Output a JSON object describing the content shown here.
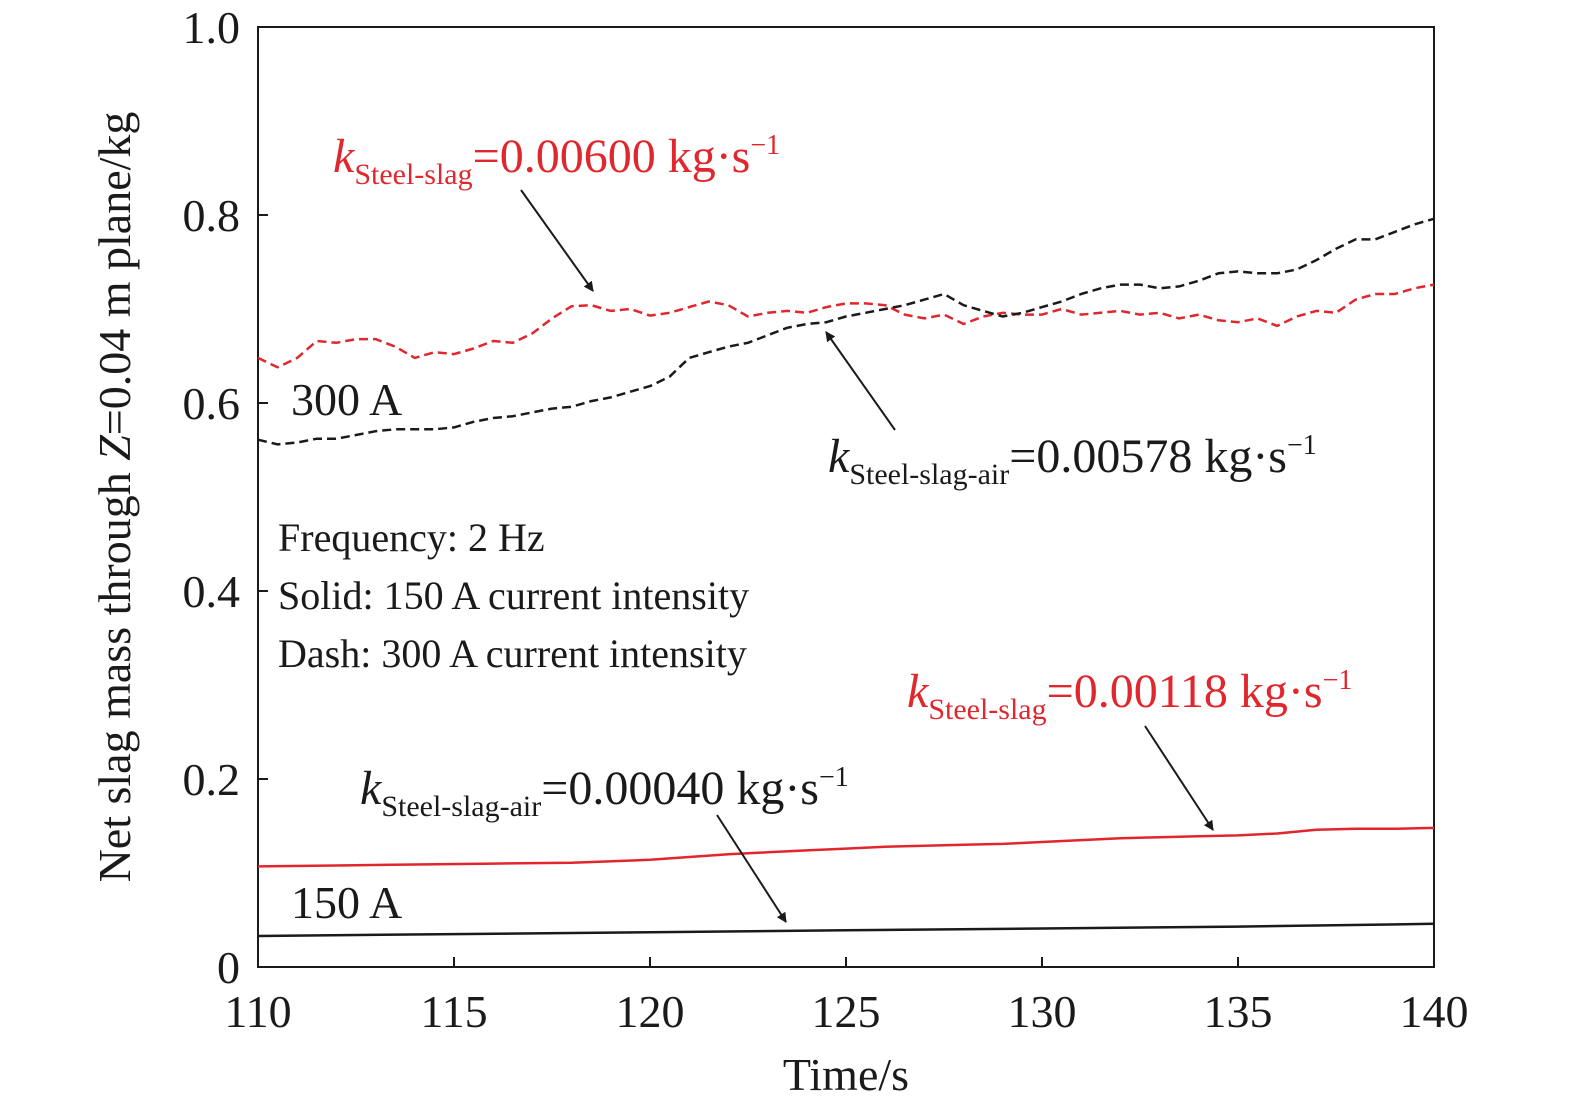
{
  "chart_data": {
    "type": "line",
    "xlabel": "Time/s",
    "ylabel_parts": [
      {
        "t": "Net slag mass through ",
        "italic": false
      },
      {
        "t": "Z",
        "italic": true
      },
      {
        "t": "=0.04 m plane/kg",
        "italic": false
      }
    ],
    "xlim": [
      110,
      140
    ],
    "ylim": [
      0,
      1.0
    ],
    "xticks": [
      110,
      115,
      120,
      125,
      130,
      135,
      140
    ],
    "xtick_labels": [
      "110",
      "115",
      "120",
      "125",
      "130",
      "135",
      "140"
    ],
    "yticks": [
      0,
      0.2,
      0.4,
      0.6,
      0.8,
      1.0
    ],
    "ytick_labels": [
      "0",
      "0.2",
      "0.4",
      "0.6",
      "0.8",
      "1.0"
    ],
    "grid": false,
    "colors": {
      "black": "#1a1a1a",
      "red": "#e0272e"
    },
    "series": [
      {
        "key": "dash-red",
        "color": "red",
        "dash": true,
        "x": [
          110,
          110.5,
          111,
          111.5,
          112,
          112.5,
          113,
          113.5,
          114,
          114.5,
          115,
          115.5,
          116,
          116.5,
          117,
          117.5,
          118,
          118.5,
          119,
          119.5,
          120,
          120.5,
          121,
          121.5,
          122,
          122.5,
          123,
          123.5,
          124,
          124.5,
          125,
          125.5,
          126,
          126.5,
          127,
          127.5,
          128,
          128.5,
          129,
          129.5,
          130,
          130.5,
          131,
          131.5,
          132,
          132.5,
          133,
          133.5,
          134,
          134.5,
          135,
          135.5,
          136,
          136.5,
          137,
          137.5,
          138,
          138.5,
          139,
          139.5,
          140
        ],
        "y": [
          0.648,
          0.638,
          0.648,
          0.666,
          0.664,
          0.668,
          0.668,
          0.66,
          0.648,
          0.654,
          0.652,
          0.658,
          0.666,
          0.664,
          0.674,
          0.69,
          0.703,
          0.704,
          0.698,
          0.7,
          0.693,
          0.696,
          0.702,
          0.708,
          0.704,
          0.692,
          0.696,
          0.698,
          0.696,
          0.702,
          0.706,
          0.706,
          0.704,
          0.694,
          0.69,
          0.694,
          0.684,
          0.692,
          0.696,
          0.694,
          0.694,
          0.7,
          0.694,
          0.696,
          0.698,
          0.694,
          0.696,
          0.69,
          0.694,
          0.688,
          0.686,
          0.69,
          0.682,
          0.692,
          0.698,
          0.696,
          0.71,
          0.716,
          0.716,
          0.722,
          0.726
        ]
      },
      {
        "key": "dash-black",
        "color": "black",
        "dash": true,
        "x": [
          110,
          110.5,
          111,
          111.5,
          112,
          112.5,
          113,
          113.5,
          114,
          114.5,
          115,
          115.5,
          116,
          116.5,
          117,
          117.5,
          118,
          118.5,
          119,
          119.5,
          120,
          120.5,
          121,
          121.5,
          122,
          122.5,
          123,
          123.5,
          124,
          124.5,
          125,
          125.5,
          126,
          126.5,
          127,
          127.5,
          128,
          128.5,
          129,
          129.5,
          130,
          130.5,
          131,
          131.5,
          132,
          132.5,
          133,
          133.5,
          134,
          134.5,
          135,
          135.5,
          136,
          136.5,
          137,
          137.5,
          138,
          138.5,
          139,
          139.5,
          140
        ],
        "y": [
          0.561,
          0.556,
          0.558,
          0.562,
          0.562,
          0.566,
          0.57,
          0.572,
          0.572,
          0.572,
          0.574,
          0.58,
          0.584,
          0.586,
          0.59,
          0.594,
          0.596,
          0.602,
          0.606,
          0.612,
          0.618,
          0.628,
          0.648,
          0.654,
          0.66,
          0.664,
          0.672,
          0.68,
          0.684,
          0.686,
          0.692,
          0.696,
          0.7,
          0.704,
          0.71,
          0.716,
          0.704,
          0.698,
          0.692,
          0.696,
          0.702,
          0.708,
          0.716,
          0.722,
          0.726,
          0.726,
          0.722,
          0.724,
          0.73,
          0.738,
          0.74,
          0.738,
          0.738,
          0.742,
          0.752,
          0.764,
          0.774,
          0.774,
          0.782,
          0.79,
          0.796
        ]
      },
      {
        "key": "solid-red",
        "color": "red",
        "dash": false,
        "x": [
          110,
          112,
          114,
          116,
          118,
          120,
          121,
          122,
          123,
          124,
          125,
          126,
          127,
          128,
          129,
          130,
          131,
          132,
          133,
          134,
          135,
          136,
          137,
          138,
          139,
          140
        ],
        "y": [
          0.107,
          0.108,
          0.109,
          0.11,
          0.111,
          0.114,
          0.117,
          0.12,
          0.122,
          0.124,
          0.126,
          0.128,
          0.129,
          0.13,
          0.131,
          0.133,
          0.135,
          0.137,
          0.138,
          0.139,
          0.14,
          0.142,
          0.146,
          0.147,
          0.147,
          0.148
        ]
      },
      {
        "key": "solid-black",
        "color": "black",
        "dash": false,
        "x": [
          110,
          115,
          120,
          125,
          130,
          135,
          140
        ],
        "y": [
          0.033,
          0.035,
          0.037,
          0.039,
          0.041,
          0.043,
          0.046
        ]
      }
    ],
    "notes": {
      "label_300": "300 A",
      "label_150": "150 A",
      "info_lines": [
        "Frequency: 2 Hz",
        "Solid: 150 A current intensity",
        "Dash: 300 A current intensity"
      ]
    },
    "annotations": [
      {
        "key": "k1",
        "color": "red",
        "k": "k",
        "sub": "Steel-slag",
        "value": "=0.00600 kg·s",
        "sup": "−1"
      },
      {
        "key": "k2",
        "color": "black",
        "k": "k",
        "sub": "Steel-slag-air",
        "value": "=0.00578 kg·s",
        "sup": "−1"
      },
      {
        "key": "k3",
        "color": "red",
        "k": "k",
        "sub": "Steel-slag",
        "value": "=0.00118 kg·s",
        "sup": "−1"
      },
      {
        "key": "k4",
        "color": "black",
        "k": "k",
        "sub": "Steel-slag-air",
        "value": "=0.00040 kg·s",
        "sup": "−1"
      }
    ]
  }
}
